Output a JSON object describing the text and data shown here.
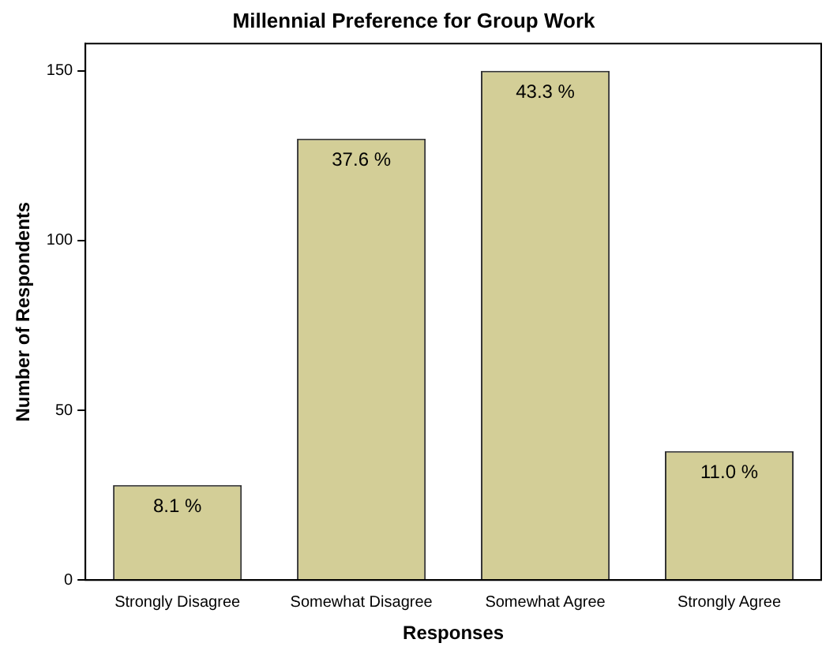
{
  "chart_data": {
    "type": "bar",
    "title": "Millennial Preference for Group Work",
    "xlabel": "Responses",
    "ylabel": "Number of Respondents",
    "categories": [
      "Strongly Disagree",
      "Somewhat Disagree",
      "Somewhat Agree",
      "Strongly Agree"
    ],
    "values": [
      28,
      130,
      150,
      38
    ],
    "color": "#d3ce97",
    "annotations": [
      {
        "text": "8.1 %",
        "x": "Strongly Disagree",
        "y": 28
      },
      {
        "text": "37.6 %",
        "x": "Somewhat Disagree",
        "y": 130
      },
      {
        "text": "43.3 %",
        "x": "Somewhat Agree",
        "y": 150
      },
      {
        "text": "11.0 %",
        "x": "Strongly Agree",
        "y": 38
      }
    ],
    "ylim": [
      0,
      158
    ],
    "yticks": [
      0,
      50,
      100,
      150
    ],
    "grid": false,
    "legend": false
  }
}
